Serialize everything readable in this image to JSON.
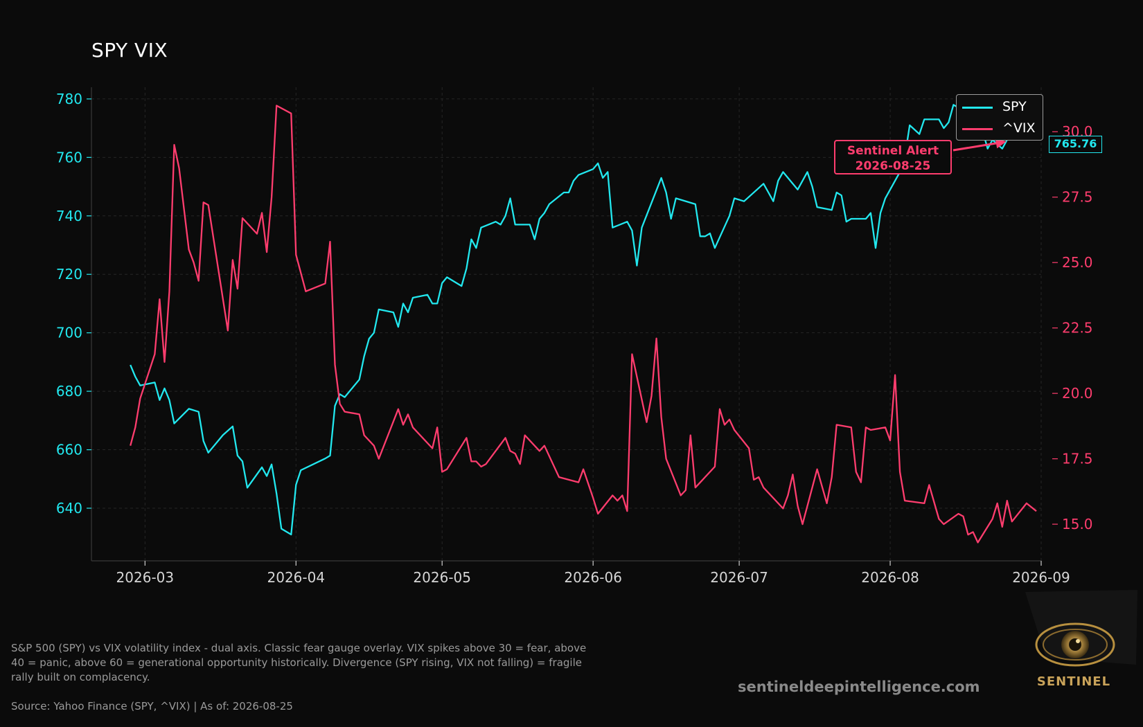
{
  "chart_data": {
    "type": "line",
    "title": "SPY VIX",
    "x_ticks": [
      "2026-03",
      "2026-04",
      "2026-05",
      "2026-06",
      "2026-07",
      "2026-08",
      "2026-09"
    ],
    "y_left": {
      "ticks": [
        640,
        660,
        680,
        700,
        720,
        740,
        760,
        780
      ],
      "range": [
        622,
        784
      ],
      "color": "#22e8ef"
    },
    "y_right": {
      "ticks": [
        "15.0",
        "17.5",
        "20.0",
        "22.5",
        "25.0",
        "27.5",
        "30.0"
      ],
      "range": [
        13.6,
        31.7
      ],
      "color": "#ff3d6e"
    },
    "grid": true,
    "legend": {
      "position": "top-right",
      "entries": [
        "SPY",
        "^VIX"
      ]
    },
    "x_range": [
      "2026-02-18",
      "2026-09-01"
    ],
    "series": [
      {
        "name": "SPY",
        "axis": "left",
        "color": "#22e8ef",
        "points": [
          [
            "2026-02-26",
            689
          ],
          [
            "2026-02-27",
            685
          ],
          [
            "2026-02-28",
            682
          ],
          [
            "2026-03-03",
            683
          ],
          [
            "2026-03-04",
            677
          ],
          [
            "2026-03-05",
            681
          ],
          [
            "2026-03-06",
            677
          ],
          [
            "2026-03-07",
            669
          ],
          [
            "2026-03-10",
            674
          ],
          [
            "2026-03-12",
            673
          ],
          [
            "2026-03-13",
            663
          ],
          [
            "2026-03-14",
            659
          ],
          [
            "2026-03-17",
            665
          ],
          [
            "2026-03-19",
            668
          ],
          [
            "2026-03-20",
            658
          ],
          [
            "2026-03-21",
            656
          ],
          [
            "2026-03-22",
            647
          ],
          [
            "2026-03-25",
            654
          ],
          [
            "2026-03-26",
            651
          ],
          [
            "2026-03-27",
            655
          ],
          [
            "2026-03-28",
            645
          ],
          [
            "2026-03-29",
            633
          ],
          [
            "2026-03-31",
            631
          ],
          [
            "2026-04-01",
            648
          ],
          [
            "2026-04-02",
            653
          ],
          [
            "2026-04-07",
            657
          ],
          [
            "2026-04-08",
            658
          ],
          [
            "2026-04-09",
            675
          ],
          [
            "2026-04-10",
            679
          ],
          [
            "2026-04-11",
            678
          ],
          [
            "2026-04-14",
            684
          ],
          [
            "2026-04-15",
            692
          ],
          [
            "2026-04-16",
            698
          ],
          [
            "2026-04-17",
            700
          ],
          [
            "2026-04-18",
            708
          ],
          [
            "2026-04-21",
            707
          ],
          [
            "2026-04-22",
            702
          ],
          [
            "2026-04-23",
            710
          ],
          [
            "2026-04-24",
            707
          ],
          [
            "2026-04-25",
            712
          ],
          [
            "2026-04-28",
            713
          ],
          [
            "2026-04-29",
            710
          ],
          [
            "2026-04-30",
            710
          ],
          [
            "2026-05-01",
            717
          ],
          [
            "2026-05-02",
            719
          ],
          [
            "2026-05-05",
            716
          ],
          [
            "2026-05-06",
            722
          ],
          [
            "2026-05-07",
            732
          ],
          [
            "2026-05-08",
            729
          ],
          [
            "2026-05-09",
            736
          ],
          [
            "2026-05-12",
            738
          ],
          [
            "2026-05-13",
            737
          ],
          [
            "2026-05-14",
            740
          ],
          [
            "2026-05-15",
            746
          ],
          [
            "2026-05-16",
            737
          ],
          [
            "2026-05-19",
            737
          ],
          [
            "2026-05-20",
            732
          ],
          [
            "2026-05-21",
            739
          ],
          [
            "2026-05-22",
            741
          ],
          [
            "2026-05-23",
            744
          ],
          [
            "2026-05-26",
            748
          ],
          [
            "2026-05-27",
            748
          ],
          [
            "2026-05-28",
            752
          ],
          [
            "2026-05-29",
            754
          ],
          [
            "2026-06-01",
            756
          ],
          [
            "2026-06-02",
            758
          ],
          [
            "2026-06-03",
            753
          ],
          [
            "2026-06-04",
            755
          ],
          [
            "2026-06-05",
            736
          ],
          [
            "2026-06-08",
            738
          ],
          [
            "2026-06-09",
            735
          ],
          [
            "2026-06-10",
            723
          ],
          [
            "2026-06-11",
            736
          ],
          [
            "2026-06-15",
            753
          ],
          [
            "2026-06-16",
            748
          ],
          [
            "2026-06-17",
            739
          ],
          [
            "2026-06-18",
            746
          ],
          [
            "2026-06-22",
            744
          ],
          [
            "2026-06-23",
            733
          ],
          [
            "2026-06-24",
            733
          ],
          [
            "2026-06-25",
            734
          ],
          [
            "2026-06-26",
            729
          ],
          [
            "2026-06-29",
            740
          ],
          [
            "2026-06-30",
            746
          ],
          [
            "2026-07-02",
            745
          ],
          [
            "2026-07-06",
            751
          ],
          [
            "2026-07-07",
            748
          ],
          [
            "2026-07-08",
            745
          ],
          [
            "2026-07-09",
            752
          ],
          [
            "2026-07-10",
            755
          ],
          [
            "2026-07-13",
            749
          ],
          [
            "2026-07-15",
            755
          ],
          [
            "2026-07-16",
            750
          ],
          [
            "2026-07-17",
            743
          ],
          [
            "2026-07-20",
            742
          ],
          [
            "2026-07-21",
            748
          ],
          [
            "2026-07-22",
            747
          ],
          [
            "2026-07-23",
            738
          ],
          [
            "2026-07-24",
            739
          ],
          [
            "2026-07-27",
            739
          ],
          [
            "2026-07-28",
            741
          ],
          [
            "2026-07-29",
            729
          ],
          [
            "2026-07-30",
            741
          ],
          [
            "2026-07-31",
            746
          ],
          [
            "2026-08-03",
            755
          ],
          [
            "2026-08-04",
            760
          ],
          [
            "2026-08-05",
            771
          ],
          [
            "2026-08-07",
            768
          ],
          [
            "2026-08-08",
            773
          ],
          [
            "2026-08-11",
            773
          ],
          [
            "2026-08-12",
            770
          ],
          [
            "2026-08-13",
            772
          ],
          [
            "2026-08-14",
            778
          ],
          [
            "2026-08-17",
            775
          ],
          [
            "2026-08-18",
            772
          ],
          [
            "2026-08-19",
            767
          ],
          [
            "2026-08-20",
            769
          ],
          [
            "2026-08-21",
            763
          ],
          [
            "2026-08-22",
            766
          ],
          [
            "2026-08-24",
            763
          ],
          [
            "2026-08-25",
            766
          ]
        ]
      },
      {
        "name": "^VIX",
        "axis": "right",
        "color": "#ff3d6e",
        "points": [
          [
            "2026-02-26",
            18.0
          ],
          [
            "2026-02-27",
            18.7
          ],
          [
            "2026-02-28",
            19.8
          ],
          [
            "2026-03-03",
            21.5
          ],
          [
            "2026-03-04",
            23.6
          ],
          [
            "2026-03-05",
            21.2
          ],
          [
            "2026-03-06",
            23.9
          ],
          [
            "2026-03-07",
            29.5
          ],
          [
            "2026-03-08",
            28.6
          ],
          [
            "2026-03-10",
            25.5
          ],
          [
            "2026-03-11",
            25.0
          ],
          [
            "2026-03-12",
            24.3
          ],
          [
            "2026-03-13",
            27.3
          ],
          [
            "2026-03-14",
            27.2
          ],
          [
            "2026-03-18",
            22.4
          ],
          [
            "2026-03-19",
            25.1
          ],
          [
            "2026-03-20",
            24.0
          ],
          [
            "2026-03-21",
            26.7
          ],
          [
            "2026-03-24",
            26.1
          ],
          [
            "2026-03-25",
            26.9
          ],
          [
            "2026-03-26",
            25.4
          ],
          [
            "2026-03-27",
            27.5
          ],
          [
            "2026-03-28",
            31.0
          ],
          [
            "2026-03-31",
            30.7
          ],
          [
            "2026-04-01",
            25.3
          ],
          [
            "2026-04-03",
            23.9
          ],
          [
            "2026-04-07",
            24.2
          ],
          [
            "2026-04-08",
            25.8
          ],
          [
            "2026-04-09",
            21.1
          ],
          [
            "2026-04-10",
            19.6
          ],
          [
            "2026-04-11",
            19.3
          ],
          [
            "2026-04-14",
            19.2
          ],
          [
            "2026-04-15",
            18.4
          ],
          [
            "2026-04-17",
            18.0
          ],
          [
            "2026-04-18",
            17.5
          ],
          [
            "2026-04-22",
            19.4
          ],
          [
            "2026-04-23",
            18.8
          ],
          [
            "2026-04-24",
            19.2
          ],
          [
            "2026-04-25",
            18.7
          ],
          [
            "2026-04-29",
            17.9
          ],
          [
            "2026-04-30",
            18.7
          ],
          [
            "2026-05-01",
            17.0
          ],
          [
            "2026-05-02",
            17.1
          ],
          [
            "2026-05-06",
            18.3
          ],
          [
            "2026-05-07",
            17.4
          ],
          [
            "2026-05-08",
            17.4
          ],
          [
            "2026-05-09",
            17.2
          ],
          [
            "2026-05-10",
            17.3
          ],
          [
            "2026-05-14",
            18.3
          ],
          [
            "2026-05-15",
            17.8
          ],
          [
            "2026-05-16",
            17.7
          ],
          [
            "2026-05-17",
            17.3
          ],
          [
            "2026-05-18",
            18.4
          ],
          [
            "2026-05-21",
            17.8
          ],
          [
            "2026-05-22",
            18.0
          ],
          [
            "2026-05-25",
            16.8
          ],
          [
            "2026-05-29",
            16.6
          ],
          [
            "2026-05-30",
            17.1
          ],
          [
            "2026-06-01",
            16.0
          ],
          [
            "2026-06-02",
            15.4
          ],
          [
            "2026-06-05",
            16.1
          ],
          [
            "2026-06-06",
            15.9
          ],
          [
            "2026-06-07",
            16.1
          ],
          [
            "2026-06-08",
            15.5
          ],
          [
            "2026-06-09",
            21.5
          ],
          [
            "2026-06-12",
            18.9
          ],
          [
            "2026-06-13",
            19.9
          ],
          [
            "2026-06-14",
            22.1
          ],
          [
            "2026-06-15",
            19.1
          ],
          [
            "2026-06-16",
            17.5
          ],
          [
            "2026-06-19",
            16.1
          ],
          [
            "2026-06-20",
            16.3
          ],
          [
            "2026-06-21",
            18.4
          ],
          [
            "2026-06-22",
            16.4
          ],
          [
            "2026-06-26",
            17.2
          ],
          [
            "2026-06-27",
            19.4
          ],
          [
            "2026-06-28",
            18.8
          ],
          [
            "2026-06-29",
            19.0
          ],
          [
            "2026-06-30",
            18.6
          ],
          [
            "2026-07-03",
            17.9
          ],
          [
            "2026-07-04",
            16.7
          ],
          [
            "2026-07-05",
            16.8
          ],
          [
            "2026-07-06",
            16.4
          ],
          [
            "2026-07-10",
            15.6
          ],
          [
            "2026-07-11",
            16.1
          ],
          [
            "2026-07-12",
            16.9
          ],
          [
            "2026-07-13",
            15.7
          ],
          [
            "2026-07-14",
            15.0
          ],
          [
            "2026-07-17",
            17.1
          ],
          [
            "2026-07-19",
            15.8
          ],
          [
            "2026-07-20",
            16.8
          ],
          [
            "2026-07-21",
            18.8
          ],
          [
            "2026-07-24",
            18.7
          ],
          [
            "2026-07-25",
            17.0
          ],
          [
            "2026-07-26",
            16.6
          ],
          [
            "2026-07-27",
            18.7
          ],
          [
            "2026-07-28",
            18.6
          ],
          [
            "2026-07-31",
            18.7
          ],
          [
            "2026-08-01",
            18.2
          ],
          [
            "2026-08-02",
            20.7
          ],
          [
            "2026-08-03",
            17.0
          ],
          [
            "2026-08-04",
            15.9
          ],
          [
            "2026-08-08",
            15.8
          ],
          [
            "2026-08-09",
            16.5
          ],
          [
            "2026-08-11",
            15.2
          ],
          [
            "2026-08-12",
            15.0
          ],
          [
            "2026-08-15",
            15.4
          ],
          [
            "2026-08-16",
            15.3
          ],
          [
            "2026-08-17",
            14.6
          ],
          [
            "2026-08-18",
            14.7
          ],
          [
            "2026-08-19",
            14.3
          ],
          [
            "2026-08-22",
            15.2
          ],
          [
            "2026-08-23",
            15.8
          ],
          [
            "2026-08-24",
            14.9
          ],
          [
            "2026-08-25",
            15.9
          ],
          [
            "2026-08-26",
            15.1
          ],
          [
            "2026-08-29",
            15.8
          ],
          [
            "2026-08-31",
            15.5
          ]
        ]
      }
    ],
    "annotation": {
      "label_line1": "Sentinel Alert",
      "label_line2": "2026-08-25",
      "target": [
        "2026-08-25",
        766
      ],
      "color": "#ff3d6e"
    },
    "last_value_label": "765.76"
  },
  "caption": "S&P 500 (SPY) vs VIX volatility index - dual axis. Classic fear gauge overlay. VIX spikes above 30 = fear, above 40 = panic, above 60 = generational opportunity historically. Divergence (SPY rising, VIX not falling) = fragile rally built on complacency.",
  "source": "Source: Yahoo Finance (SPY, ^VIX) | As of: 2026-08-25",
  "website": "sentineldeepintelligence.com",
  "logo_text": "SENTINEL"
}
